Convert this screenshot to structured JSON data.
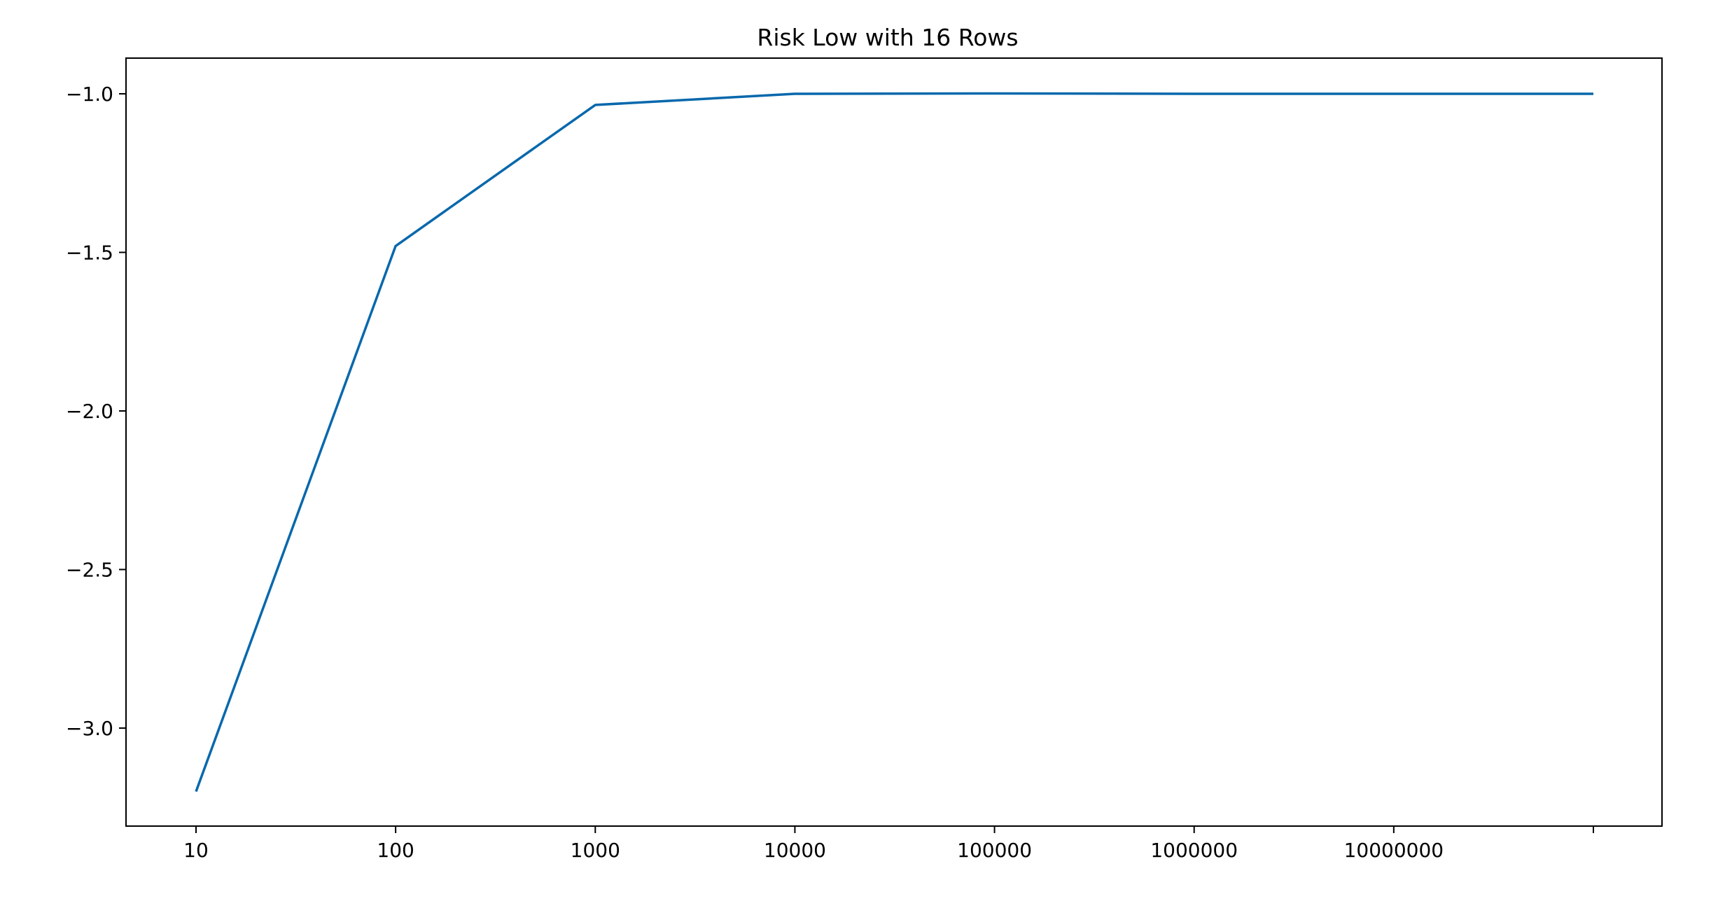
{
  "chart_data": {
    "type": "line",
    "title": "Risk Low with 16 Rows",
    "xlabel": "",
    "ylabel": "",
    "x_scale": "log",
    "x_tick_values": [
      10,
      100,
      1000,
      10000,
      100000,
      1000000,
      10000000,
      100000000
    ],
    "x_tick_labels": [
      "10",
      "100",
      "1000",
      "10000",
      "100000",
      "1000000",
      "10000000",
      ""
    ],
    "y_tick_values": [
      -1.0,
      -1.5,
      -2.0,
      -2.5,
      -3.0
    ],
    "y_tick_labels": [
      "−1.0",
      "−1.5",
      "−2.0",
      "−2.5",
      "−3.0"
    ],
    "xlim": [
      10,
      100000000
    ],
    "ylim": [
      -3.3,
      -0.89
    ],
    "grid": false,
    "series": [
      {
        "color": "#0868ac",
        "x": [
          10,
          100,
          1000,
          10000,
          100000,
          1000000,
          10000000,
          100000000
        ],
        "y": [
          -3.2,
          -1.48,
          -1.035,
          -1.0,
          -0.999,
          -1.0,
          -1.0,
          -1.0
        ]
      }
    ]
  }
}
